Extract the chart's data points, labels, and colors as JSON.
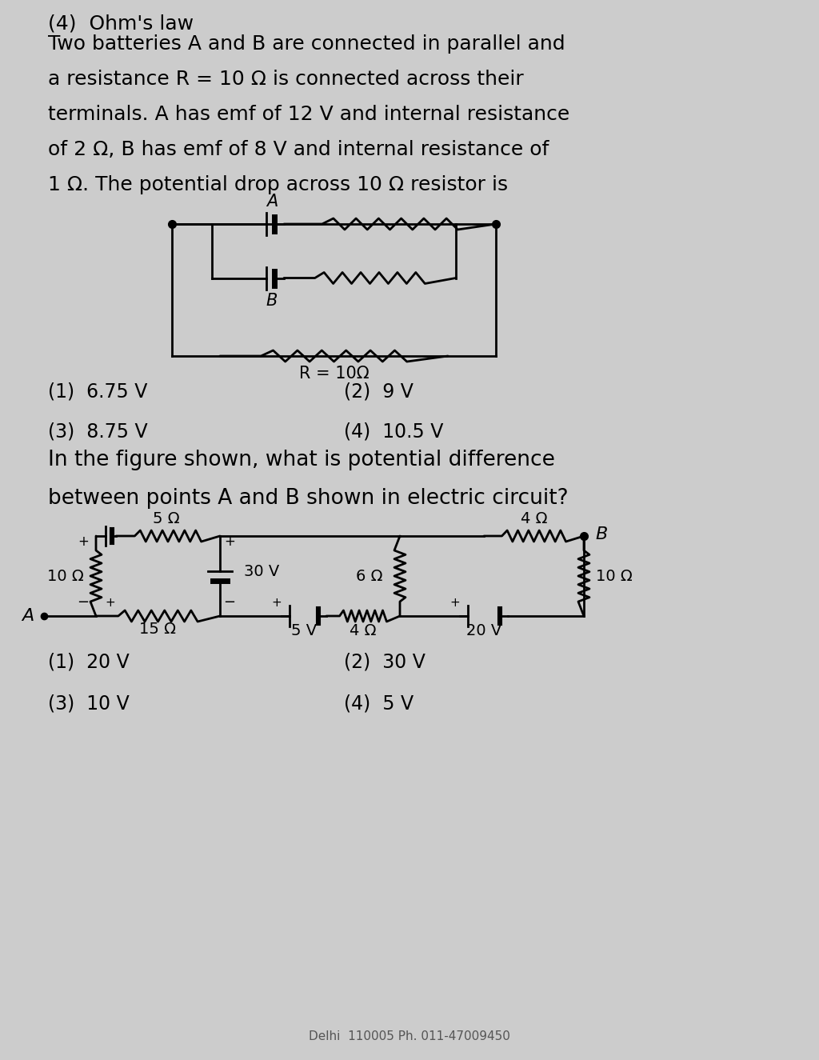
{
  "bg_color": "#cccccc",
  "title_q4": "(4)  Ohm's law",
  "q3_text_lines": [
    "Two batteries A and B are connected in parallel and",
    "a resistance R = 10 Ω is connected across their",
    "terminals. A has emf of 12 V and internal resistance",
    "of 2 Ω, B has emf of 8 V and internal resistance of",
    "1 Ω. The potential drop across 10 Ω resistor is"
  ],
  "q3_options": [
    "(1)  6.75 V",
    "(2)  9 V",
    "(3)  8.75 V",
    "(4)  10.5 V"
  ],
  "q4_question_lines": [
    "In the figure shown, what is potential difference",
    "between points A and B shown in electric circuit?"
  ],
  "q4_options": [
    "(1)  20 V",
    "(2)  30 V",
    "(3)  10 V",
    "(4)  5 V"
  ],
  "bottom_text": "Delhi  110005 Ph. 011-47009450"
}
